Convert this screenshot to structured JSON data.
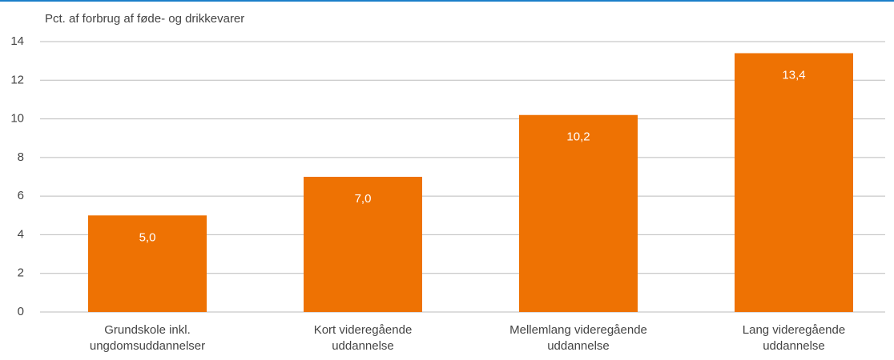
{
  "chart_data": {
    "type": "bar",
    "y_axis_label": "Pct. af forbrug af føde- og drikkevarer",
    "categories": [
      [
        "Grundskole inkl.",
        "ungdomsuddannelser"
      ],
      [
        "Kort videregående",
        "uddannelse"
      ],
      [
        "Mellemlang videregående",
        "uddannelse"
      ],
      [
        "Lang videregående",
        "uddannelse"
      ]
    ],
    "values": [
      5.0,
      7.0,
      10.2,
      13.4
    ],
    "value_labels": [
      "5,0",
      "7,0",
      "10,2",
      "13,4"
    ],
    "color": "#ee7203",
    "ylim": [
      0,
      14
    ],
    "yticks": [
      0,
      2,
      4,
      6,
      8,
      10,
      12,
      14
    ],
    "grid": true
  }
}
